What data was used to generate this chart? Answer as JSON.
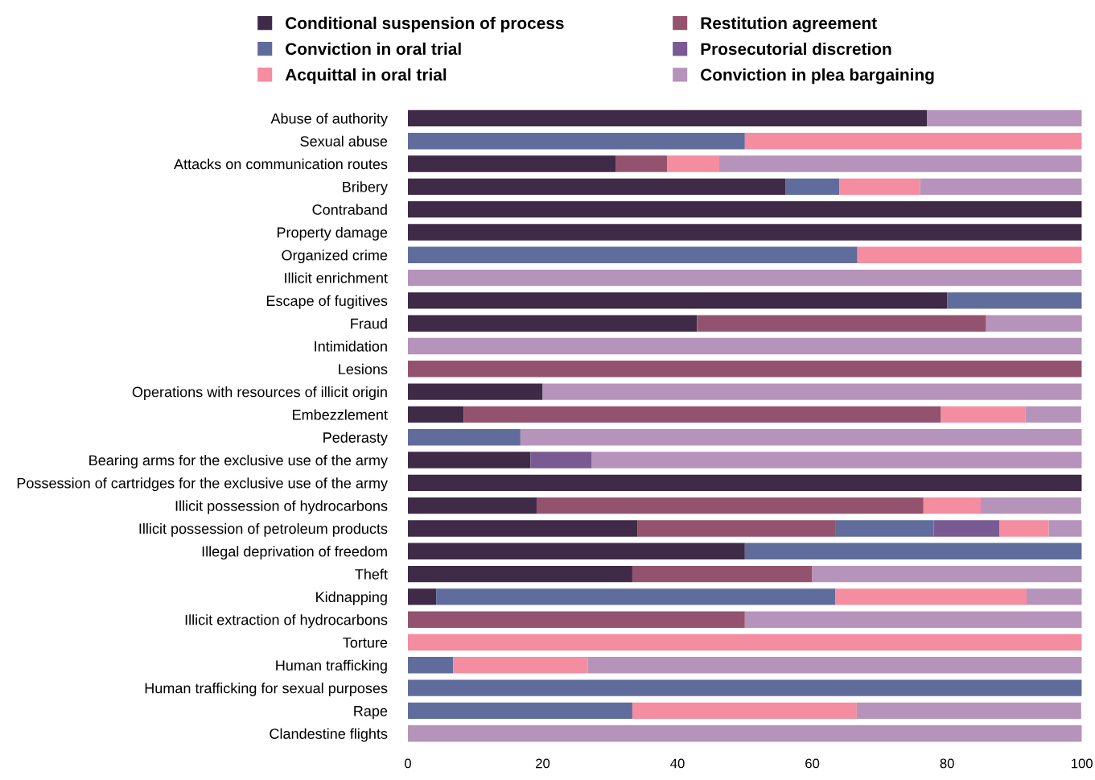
{
  "chart_data": {
    "type": "bar",
    "orientation": "horizontal",
    "stacked": true,
    "legend": "top",
    "grid": false,
    "categories": [
      "Abuse of authority",
      "Sexual abuse",
      "Attacks on communication routes",
      "Bribery",
      "Contraband",
      "Property damage",
      "Organized crime",
      "Illicit enrichment",
      "Escape of fugitives",
      "Fraud",
      "Intimidation",
      "Lesions",
      "Operations with resources of illicit origin",
      "Embezzlement",
      "Pederasty",
      "Bearing arms for the exclusive use of the army",
      "Possession of cartridges for the exclusive use of the army",
      "Illicit possession of hydrocarbons",
      "Illicit possession of petroleum products",
      "Illegal deprivation of freedom",
      "Theft",
      "Kidnapping",
      "Illicit extraction of hydrocarbons",
      "Torture",
      "Human trafficking",
      "Human trafficking for sexual purposes",
      "Rape",
      "Clandestine flights"
    ],
    "xlim": [
      0,
      100
    ],
    "xticks": [
      0,
      20,
      40,
      60,
      80,
      100
    ],
    "series": [
      {
        "name": "Conditional suspension of process",
        "color": "#3f2a47",
        "values": [
          77,
          0,
          30.8,
          56,
          100,
          100,
          0,
          0,
          80,
          42.9,
          0,
          0,
          20,
          8.3,
          0,
          18.2,
          100,
          19.1,
          34.1,
          50,
          33.3,
          4.2,
          0,
          0,
          0,
          0,
          0,
          0
        ]
      },
      {
        "name": "Restitution agreement",
        "color": "#93536e",
        "values": [
          0,
          0,
          7.7,
          0,
          0,
          0,
          0,
          0,
          0,
          42.9,
          0,
          100,
          0,
          70.8,
          0,
          0,
          0,
          57.4,
          29.3,
          0,
          26.7,
          0,
          50,
          0,
          0,
          0,
          0,
          0
        ]
      },
      {
        "name": "Conviction in oral trial",
        "color": "#606c9b",
        "values": [
          0,
          50,
          0,
          8,
          0,
          0,
          66.7,
          0,
          20,
          0,
          0,
          0,
          0,
          0,
          16.7,
          0,
          0,
          0,
          14.6,
          50,
          0,
          59.2,
          0,
          0,
          6.7,
          100,
          33.3,
          0
        ]
      },
      {
        "name": "Prosecutorial discretion",
        "color": "#7a5a92",
        "values": [
          0,
          0,
          0,
          0,
          0,
          0,
          0,
          0,
          0,
          0,
          0,
          0,
          0,
          0,
          0,
          9.1,
          0,
          0,
          9.8,
          0,
          0,
          0,
          0,
          0,
          0,
          0,
          0,
          0
        ]
      },
      {
        "name": "Acquittal in oral trial",
        "color": "#f48da0",
        "values": [
          0,
          50,
          7.7,
          12,
          0,
          0,
          33.3,
          0,
          0,
          0,
          0,
          0,
          0,
          12.5,
          0,
          0,
          0,
          8.5,
          7.3,
          0,
          0,
          28.4,
          0,
          100,
          20,
          0,
          33.3,
          0
        ]
      },
      {
        "name": "Conviction in plea bargaining",
        "color": "#b693bb",
        "values": [
          23,
          0,
          53.8,
          24,
          0,
          0,
          0,
          100,
          0,
          14.3,
          100,
          0,
          80,
          8.3,
          83.3,
          72.7,
          0,
          14.9,
          4.9,
          0,
          40,
          8.2,
          50,
          0,
          73.3,
          0,
          33.3,
          100
        ]
      }
    ]
  }
}
